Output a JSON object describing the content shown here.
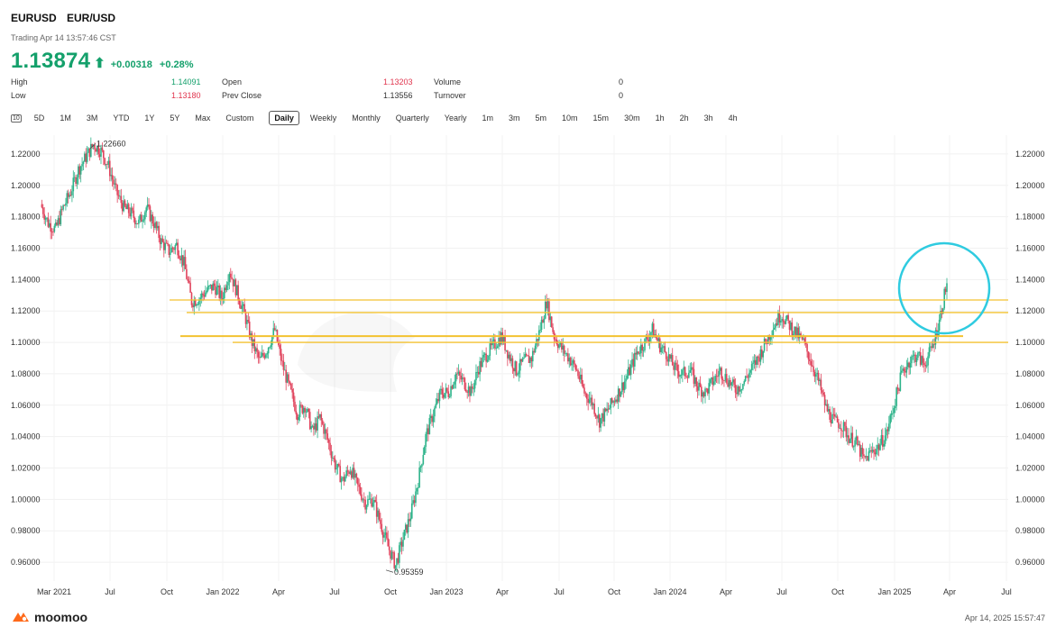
{
  "header": {
    "symbol": "EURUSD",
    "name": "EUR/USD",
    "trading_time": "Trading Apr 14 13:57:46 CST",
    "price": "1.13874",
    "change": "+0.00318",
    "change_pct": "+0.28%"
  },
  "stats": {
    "high_label": "High",
    "high": "1.14091",
    "low_label": "Low",
    "low": "1.13180",
    "open_label": "Open",
    "open": "1.13203",
    "prev_close_label": "Prev Close",
    "prev_close": "1.13556",
    "volume_label": "Volume",
    "volume": "0",
    "turnover_label": "Turnover",
    "turnover": "0"
  },
  "tabs": {
    "icon": "10",
    "items": [
      "5D",
      "1M",
      "3M",
      "YTD",
      "1Y",
      "5Y",
      "Max",
      "Custom"
    ],
    "active": "Daily",
    "periods": [
      "Weekly",
      "Monthly",
      "Quarterly",
      "Yearly",
      "1m",
      "3m",
      "5m",
      "10m",
      "15m",
      "30m",
      "1h",
      "2h",
      "3h",
      "4h"
    ]
  },
  "footer": {
    "brand": "moomoo",
    "timestamp": "Apr 14, 2025 15:57:47"
  },
  "chart_data": {
    "type": "line",
    "candlestick": true,
    "ylim": [
      0.948,
      1.232
    ],
    "y_ticks": [
      "1.22000",
      "1.20000",
      "1.18000",
      "1.16000",
      "1.14000",
      "1.12000",
      "1.10000",
      "1.08000",
      "1.06000",
      "1.04000",
      "1.02000",
      "1.00000",
      "0.98000",
      "0.96000"
    ],
    "x_ticks": [
      "Mar 2021",
      "Jul",
      "Oct",
      "Jan 2022",
      "Apr",
      "Jul",
      "Oct",
      "Jan 2023",
      "Apr",
      "Jul",
      "Oct",
      "Jan 2024",
      "Apr",
      "Jul",
      "Oct",
      "Jan 2025",
      "Apr",
      "Jul"
    ],
    "annotations": {
      "high": "1.22660",
      "low": "0.95359"
    },
    "up_color": "#2db38a",
    "down_color": "#e0445d",
    "line_color": "#f3c230",
    "circle_color": "#2fcbe0",
    "horizontal_levels": [
      1.127,
      1.119,
      1.104,
      1.1
    ],
    "series": [
      {
        "values": [
          1.188,
          1.176,
          1.172,
          1.186,
          1.196,
          1.21,
          1.218,
          1.226,
          1.222,
          1.212,
          1.196,
          1.186,
          1.182,
          1.176,
          1.186,
          1.176,
          1.164,
          1.158,
          1.162,
          1.15,
          1.126,
          1.128,
          1.133,
          1.136,
          1.128,
          1.146,
          1.132,
          1.118,
          1.1,
          1.088,
          1.096,
          1.108,
          1.086,
          1.07,
          1.055,
          1.06,
          1.043,
          1.052,
          1.038,
          1.022,
          1.012,
          1.02,
          1.008,
          0.998,
          1.0,
          0.985,
          0.97,
          0.958,
          0.975,
          0.99,
          1.012,
          1.04,
          1.055,
          1.068,
          1.068,
          1.08,
          1.075,
          1.068,
          1.084,
          1.092,
          1.098,
          1.104,
          1.092,
          1.082,
          1.088,
          1.09,
          1.106,
          1.126,
          1.104,
          1.096,
          1.09,
          1.082,
          1.068,
          1.062,
          1.05,
          1.056,
          1.064,
          1.072,
          1.082,
          1.094,
          1.1,
          1.108,
          1.098,
          1.092,
          1.083,
          1.08,
          1.082,
          1.072,
          1.068,
          1.075,
          1.082,
          1.076,
          1.07,
          1.074,
          1.082,
          1.09,
          1.1,
          1.11,
          1.118,
          1.112,
          1.106,
          1.1,
          1.088,
          1.075,
          1.058,
          1.05,
          1.048,
          1.04,
          1.036,
          1.025,
          1.03,
          1.034,
          1.042,
          1.06,
          1.08,
          1.088,
          1.092,
          1.086,
          1.096,
          1.114,
          1.138
        ]
      }
    ]
  }
}
